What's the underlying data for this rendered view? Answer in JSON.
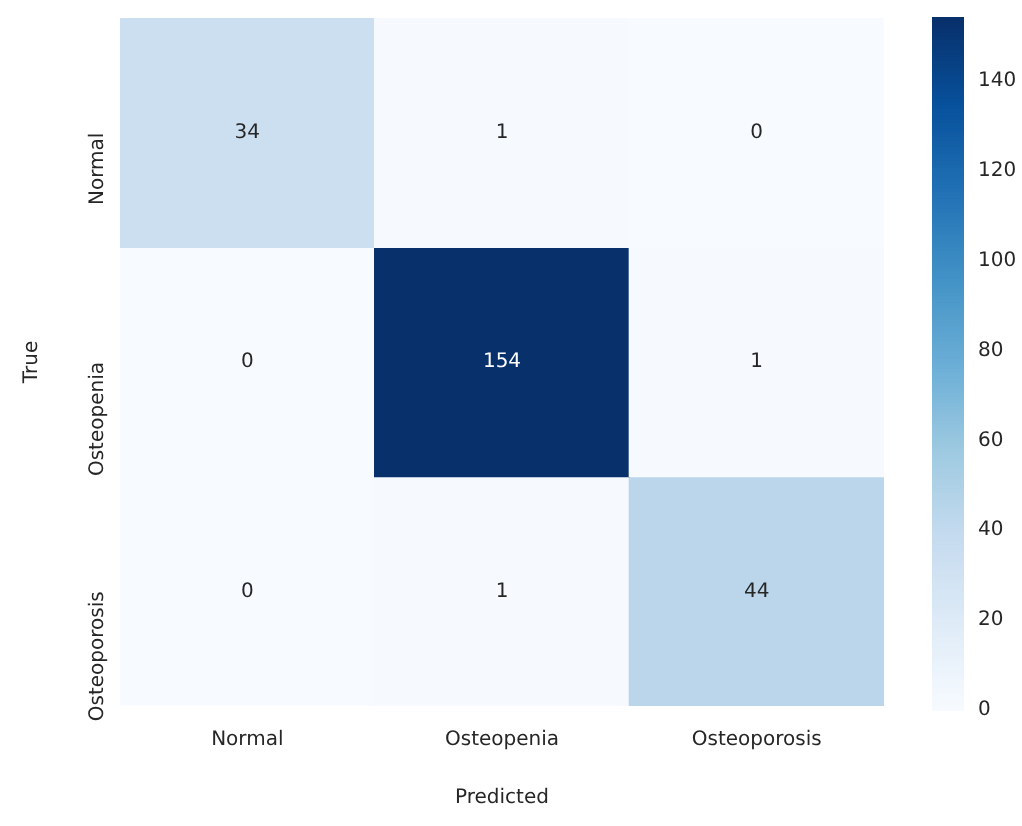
{
  "chart_data": {
    "type": "heatmap",
    "xlabel": "Predicted",
    "ylabel": "True",
    "categories": [
      "Normal",
      "Osteopenia",
      "Osteoporosis"
    ],
    "y_categories": [
      "Normal",
      "Osteopenia",
      "Osteoporosis"
    ],
    "cells": [
      [
        34,
        1,
        0
      ],
      [
        0,
        154,
        1
      ],
      [
        0,
        1,
        44
      ]
    ],
    "clim": [
      0,
      154
    ],
    "cticks": [
      0,
      20,
      40,
      60,
      80,
      100,
      120,
      140
    ],
    "data_labels": true
  }
}
